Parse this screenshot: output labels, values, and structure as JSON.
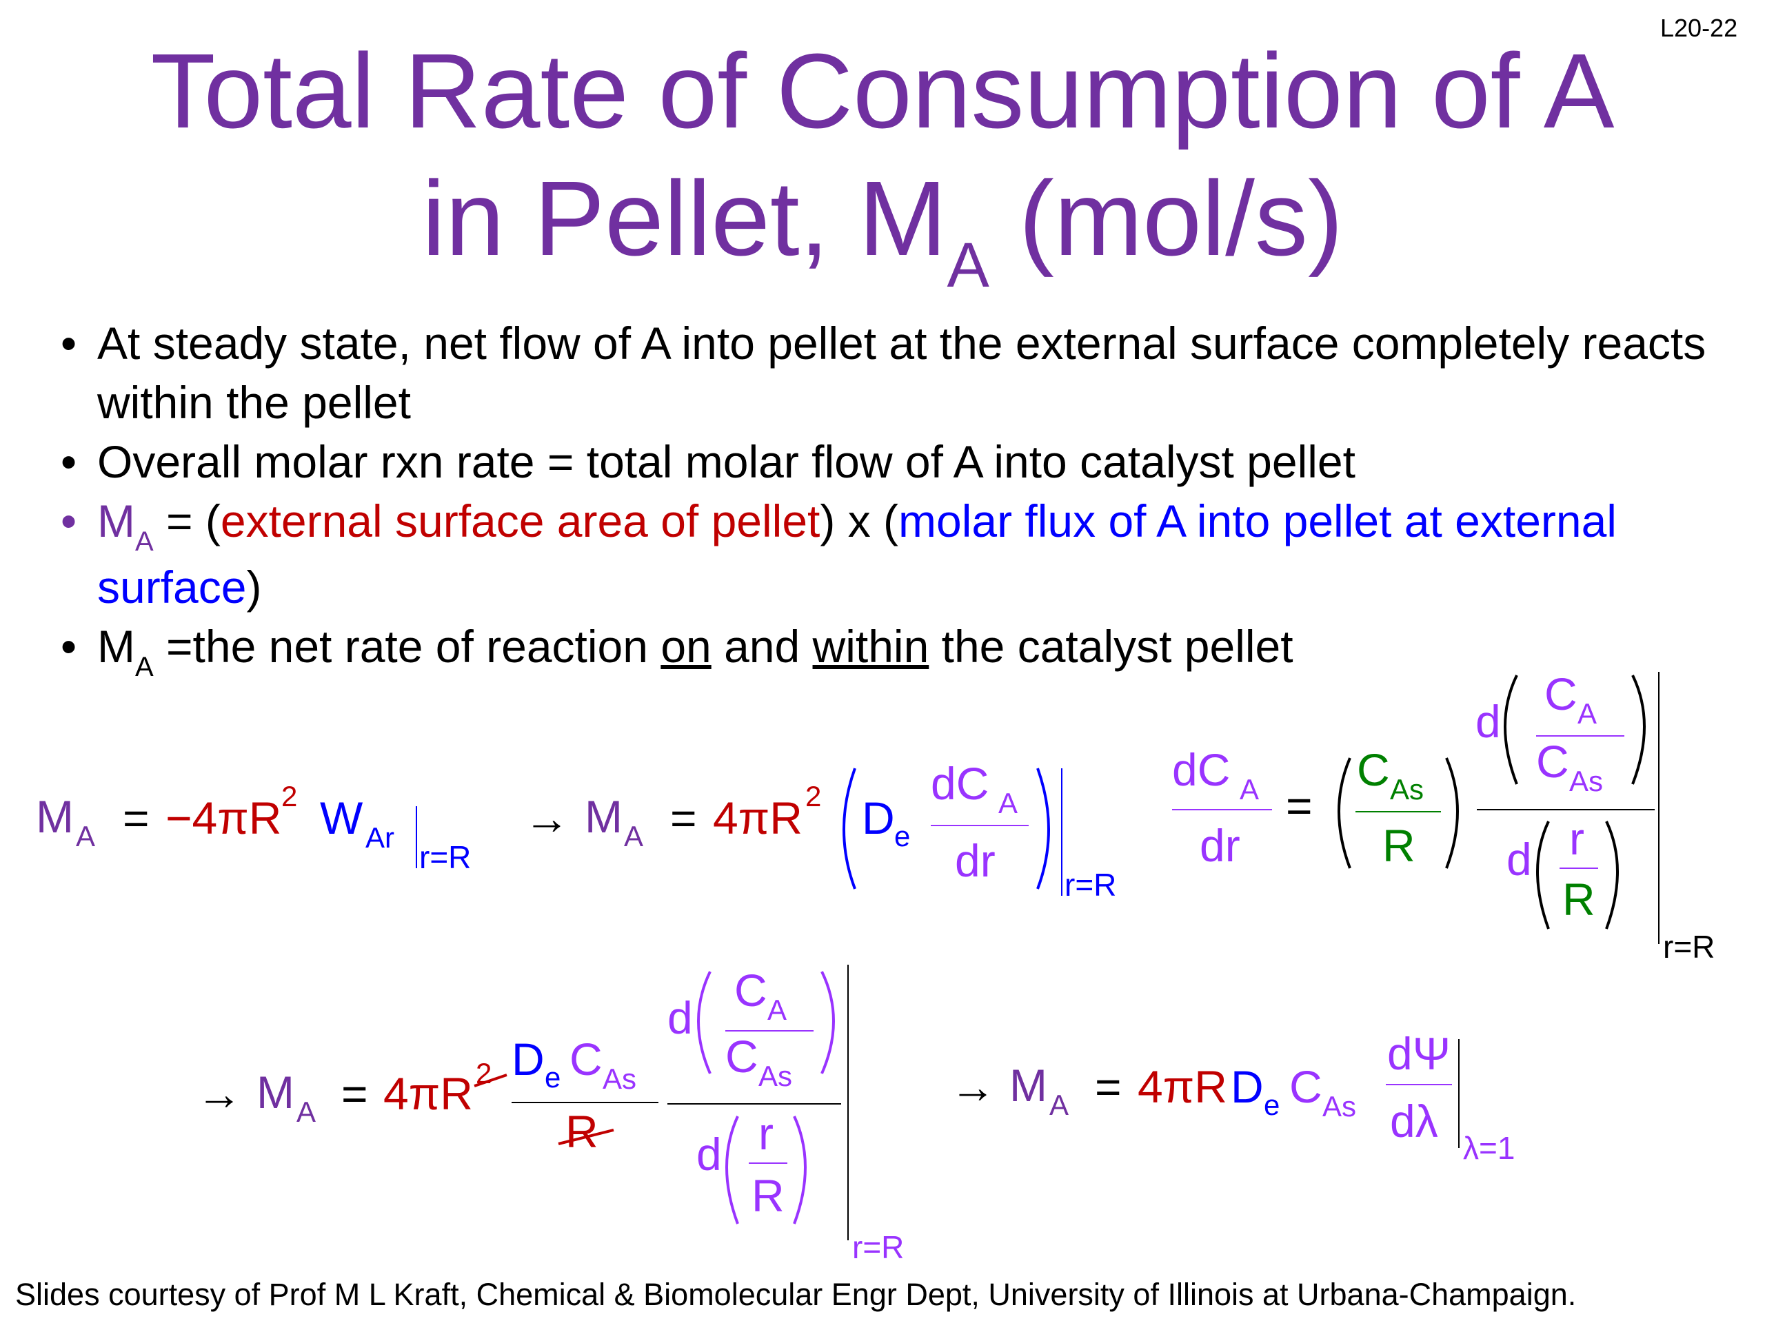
{
  "slide_id": "L20-22",
  "title": {
    "line1": "Total Rate of Consumption of A",
    "line2_pre": "in Pellet, M",
    "line2_sub": "A",
    "line2_post": "(mol/s)"
  },
  "bullets": {
    "b1": "At steady state, net flow of A into pellet at the external surface completely reacts within the pellet",
    "b2": "Overall molar rxn rate = total molar flow of A into catalyst pellet",
    "b3": {
      "m": "M",
      "m_sub": "A",
      "eq": " = (",
      "red": "external surface area of pellet",
      "mid": ") x (",
      "blue": "molar flux of A into pellet at external surface",
      "end": ")"
    },
    "b4": {
      "m": "M",
      "m_sub": "A",
      "pre": " =the net rate of reaction ",
      "u1": "on",
      "mid": " and ",
      "u2": "within",
      "post": " the catalyst pellet"
    }
  },
  "equations": {
    "arrow": "→",
    "M": "M",
    "A": "A",
    "eq": "=",
    "neg4piR": "−4πR",
    "fourpiR": "4πR",
    "two": "2",
    "W": "W",
    "Ar": "Ar",
    "r_eq_R": "r=R",
    "D": "D",
    "e": "e",
    "dCA_d": "dC",
    "dr": "dr",
    "C": "C",
    "As": "As",
    "R": "R",
    "d": "d",
    "r": "r",
    "dPsi": "dΨ",
    "dlambda": "dλ",
    "lambda_eq_1": "λ=1"
  },
  "colors": {
    "title": "#7030a0",
    "M": "#7030a0",
    "red": "#c00000",
    "blue": "#0000ff",
    "violet": "#9933ff",
    "green": "#008000"
  },
  "footer": "Slides courtesy of Prof M L Kraft, Chemical & Biomolecular Engr Dept, University of Illinois at Urbana-Champaign."
}
